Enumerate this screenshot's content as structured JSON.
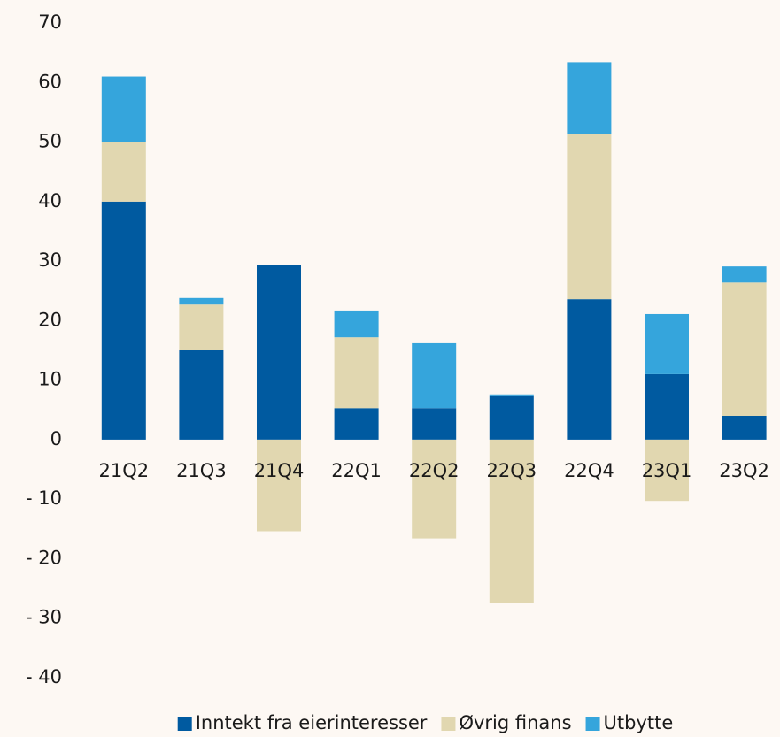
{
  "chart_data": {
    "type": "stacked_bar",
    "categories": [
      "21Q2",
      "21Q3",
      "21Q4",
      "22Q1",
      "22Q2",
      "22Q3",
      "22Q4",
      "23Q1",
      "23Q2"
    ],
    "series": [
      {
        "name": "Inntekt fra eierinteresser",
        "color": "#005aa0",
        "values": [
          40,
          15,
          29.3,
          5.3,
          5.3,
          7.3,
          23.6,
          11,
          4
        ]
      },
      {
        "name": "Øvrig finans",
        "color": "#e1d7b0",
        "values": [
          10,
          7.7,
          -15.4,
          11.9,
          -16.6,
          -27.5,
          27.8,
          -10.3,
          22.4
        ]
      },
      {
        "name": "Utbytte",
        "color": "#35a5dc",
        "values": [
          11,
          1.1,
          0,
          4.5,
          10.9,
          0.3,
          12,
          10.1,
          2.7
        ]
      }
    ],
    "ylim": [
      -40,
      70
    ],
    "yticks": [
      {
        "value": -40,
        "label": "- 40"
      },
      {
        "value": -30,
        "label": "- 30"
      },
      {
        "value": -20,
        "label": "- 20"
      },
      {
        "value": -10,
        "label": "- 10"
      },
      0,
      10,
      20,
      30,
      40,
      50,
      60,
      70
    ],
    "grid": false,
    "legend": "bottom"
  }
}
